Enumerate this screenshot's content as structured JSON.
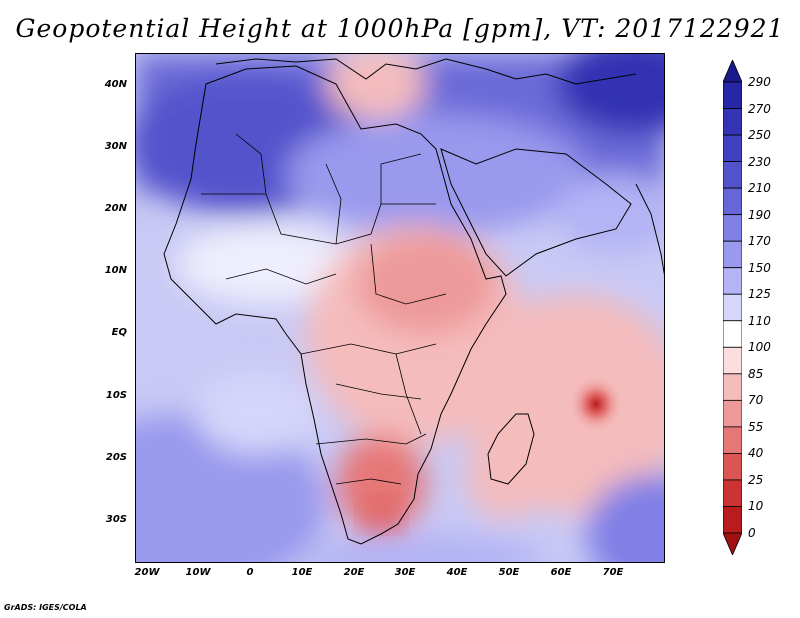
{
  "title": "Geopotential Height at 1000hPa [gpm], VT: 2017122921",
  "credit": "GrADS: IGES/COLA",
  "y_axis_labels": [
    "40N",
    "30N",
    "20N",
    "10N",
    "EQ",
    "10S",
    "20S",
    "30S"
  ],
  "x_axis_labels": [
    "20W",
    "10W",
    "0",
    "10E",
    "20E",
    "30E",
    "40E",
    "50E",
    "60E",
    "70E"
  ],
  "colorbar": {
    "levels": [
      "290",
      "270",
      "250",
      "230",
      "210",
      "190",
      "170",
      "150",
      "125",
      "110",
      "100",
      "85",
      "70",
      "55",
      "40",
      "25",
      "10",
      "0"
    ],
    "colors": [
      "#1a1a8c",
      "#2626a6",
      "#3333b3",
      "#4040c0",
      "#5252cc",
      "#6666d9",
      "#8080e6",
      "#9999ee",
      "#b3b3f5",
      "#d6d6fa",
      "#ffffff",
      "#fcdede",
      "#f5bcbc",
      "#ee9999",
      "#e67777",
      "#db5555",
      "#cc3333",
      "#b81c1c",
      "#a01010"
    ]
  },
  "map": {
    "region": "Africa and Middle East",
    "lon_range": [
      -22,
      80
    ],
    "lat_range": [
      -37,
      45
    ],
    "colors": {
      "land_outline": "#000000",
      "low_center": "#c03030"
    }
  }
}
